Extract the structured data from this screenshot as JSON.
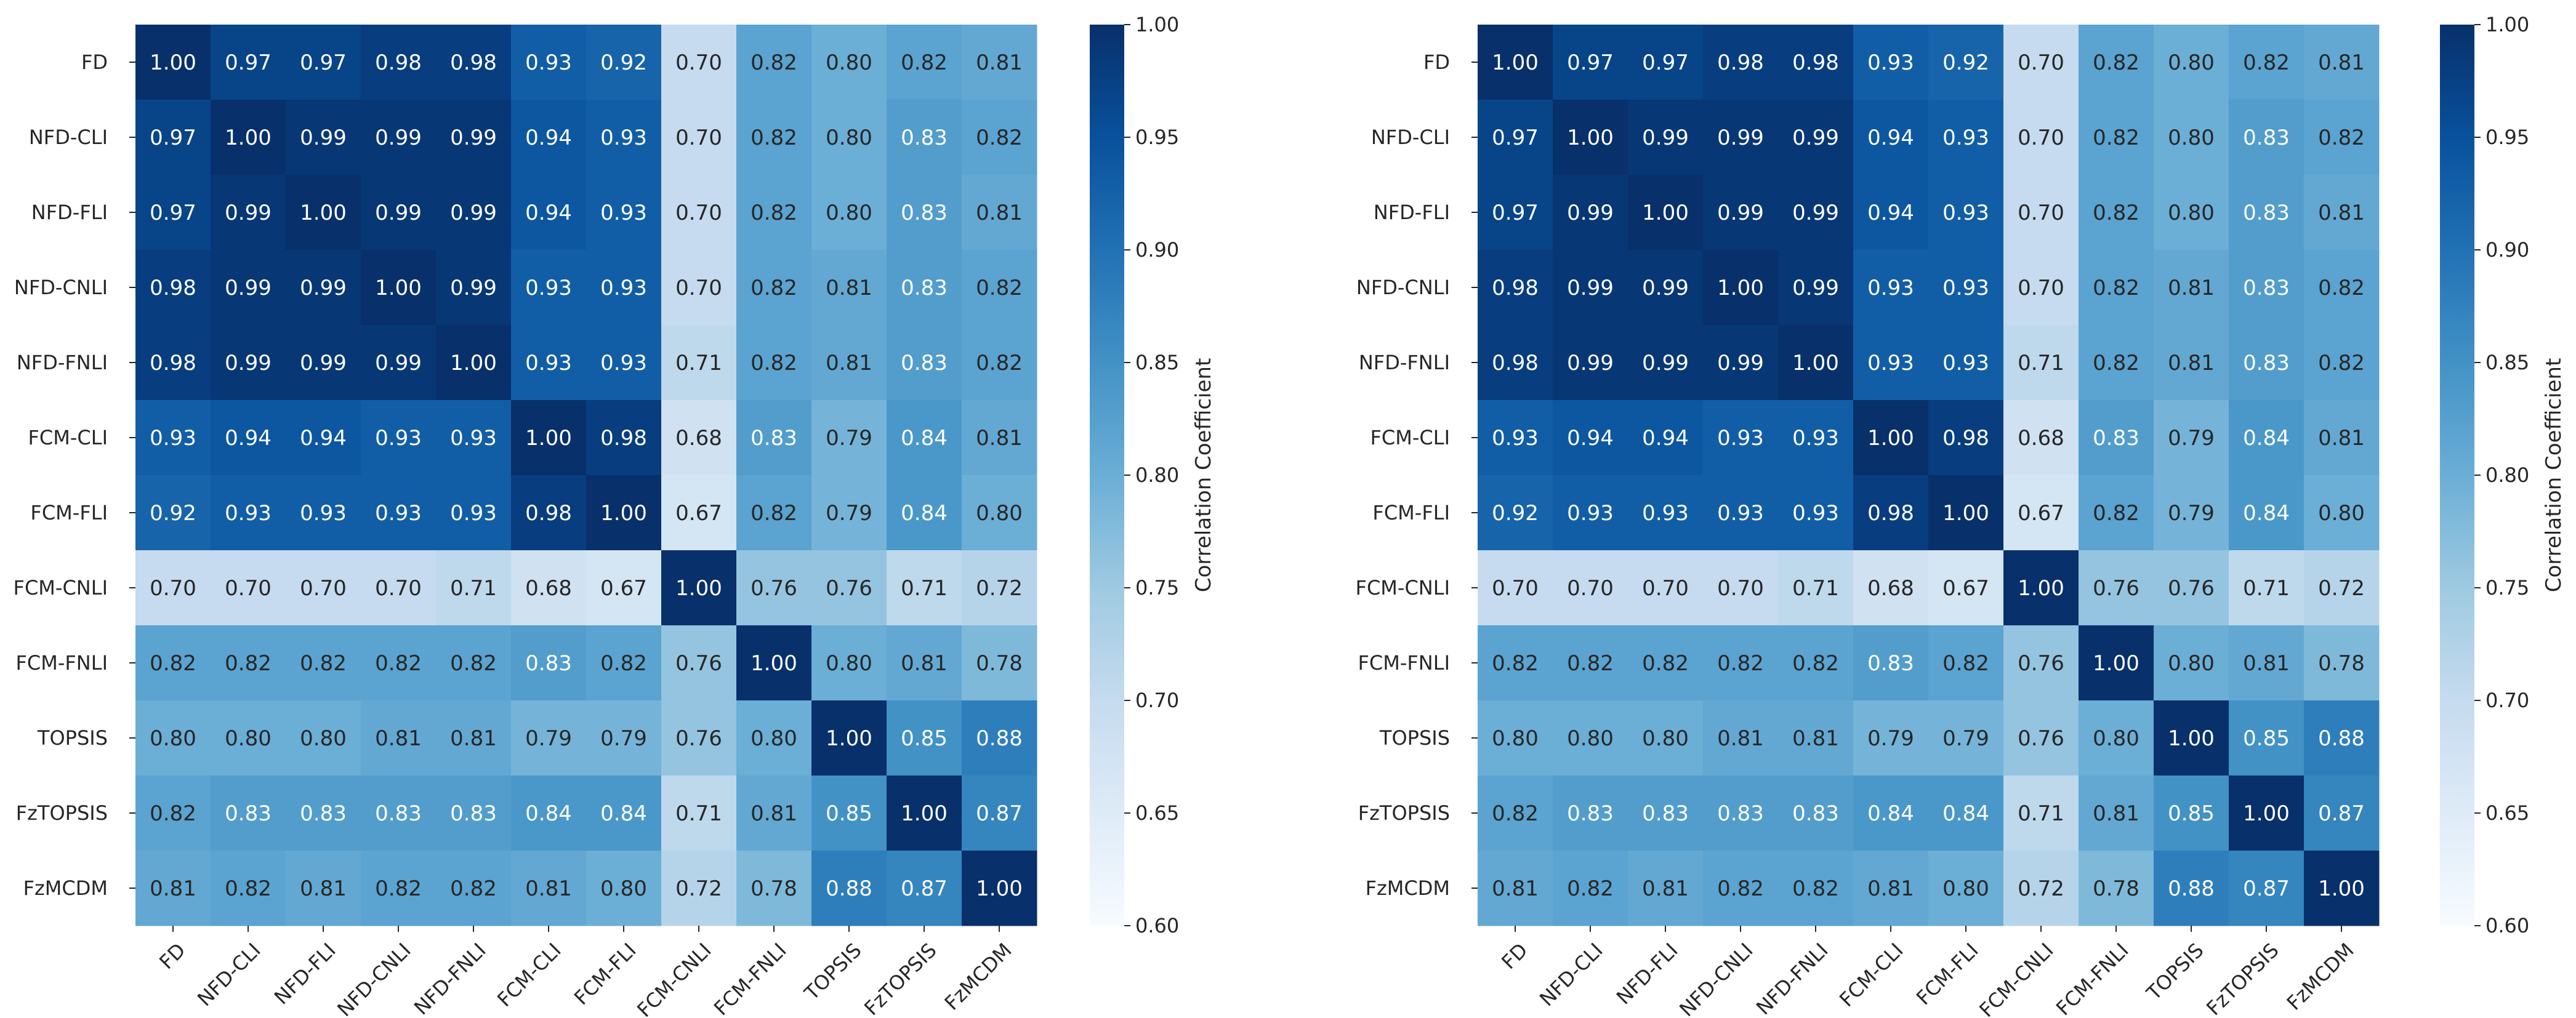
{
  "chart_data": [
    {
      "type": "heatmap",
      "title": "",
      "xlabel": "",
      "ylabel": "",
      "categories": [
        "FD",
        "NFD-CLI",
        "NFD-FLI",
        "NFD-CNLI",
        "NFD-FNLI",
        "FCM-CLI",
        "FCM-FLI",
        "FCM-CNLI",
        "FCM-FNLI",
        "TOPSIS",
        "FzTOPSIS",
        "FzMCDM"
      ],
      "values": [
        [
          1.0,
          0.97,
          0.97,
          0.98,
          0.98,
          0.93,
          0.92,
          0.7,
          0.82,
          0.8,
          0.82,
          0.81
        ],
        [
          0.97,
          1.0,
          0.99,
          0.99,
          0.99,
          0.94,
          0.93,
          0.7,
          0.82,
          0.8,
          0.83,
          0.82
        ],
        [
          0.97,
          0.99,
          1.0,
          0.99,
          0.99,
          0.94,
          0.93,
          0.7,
          0.82,
          0.8,
          0.83,
          0.81
        ],
        [
          0.98,
          0.99,
          0.99,
          1.0,
          0.99,
          0.93,
          0.93,
          0.7,
          0.82,
          0.81,
          0.83,
          0.82
        ],
        [
          0.98,
          0.99,
          0.99,
          0.99,
          1.0,
          0.93,
          0.93,
          0.71,
          0.82,
          0.81,
          0.83,
          0.82
        ],
        [
          0.93,
          0.94,
          0.94,
          0.93,
          0.93,
          1.0,
          0.98,
          0.68,
          0.83,
          0.79,
          0.84,
          0.81
        ],
        [
          0.92,
          0.93,
          0.93,
          0.93,
          0.93,
          0.98,
          1.0,
          0.67,
          0.82,
          0.79,
          0.84,
          0.8
        ],
        [
          0.7,
          0.7,
          0.7,
          0.7,
          0.71,
          0.68,
          0.67,
          1.0,
          0.76,
          0.76,
          0.71,
          0.72
        ],
        [
          0.82,
          0.82,
          0.82,
          0.82,
          0.82,
          0.83,
          0.82,
          0.76,
          1.0,
          0.8,
          0.81,
          0.78
        ],
        [
          0.8,
          0.8,
          0.8,
          0.81,
          0.81,
          0.79,
          0.79,
          0.76,
          0.8,
          1.0,
          0.85,
          0.88
        ],
        [
          0.82,
          0.83,
          0.83,
          0.83,
          0.83,
          0.84,
          0.84,
          0.71,
          0.81,
          0.85,
          1.0,
          0.87
        ],
        [
          0.81,
          0.82,
          0.81,
          0.82,
          0.82,
          0.81,
          0.8,
          0.72,
          0.78,
          0.88,
          0.87,
          1.0
        ]
      ],
      "colorbar": {
        "label": "Correlation Coefficient",
        "range": [
          0.6,
          1.0
        ],
        "ticks": [
          0.6,
          0.65,
          0.7,
          0.75,
          0.8,
          0.85,
          0.9,
          0.95,
          1.0
        ],
        "colormap": "Blues"
      },
      "annotation_format": "2 decimals"
    },
    {
      "type": "heatmap",
      "title": "",
      "xlabel": "",
      "ylabel": "",
      "categories": [
        "FD",
        "NFD-CLI",
        "NFD-FLI",
        "NFD-CNLI",
        "NFD-FNLI",
        "FCM-CLI",
        "FCM-FLI",
        "FCM-CNLI",
        "FCM-FNLI",
        "TOPSIS",
        "FzTOPSIS",
        "FzMCDM"
      ],
      "values": [
        [
          1.0,
          0.97,
          0.97,
          0.98,
          0.98,
          0.93,
          0.92,
          0.7,
          0.82,
          0.8,
          0.82,
          0.81
        ],
        [
          0.97,
          1.0,
          0.99,
          0.99,
          0.99,
          0.94,
          0.93,
          0.7,
          0.82,
          0.8,
          0.83,
          0.82
        ],
        [
          0.97,
          0.99,
          1.0,
          0.99,
          0.99,
          0.94,
          0.93,
          0.7,
          0.82,
          0.8,
          0.83,
          0.81
        ],
        [
          0.98,
          0.99,
          0.99,
          1.0,
          0.99,
          0.93,
          0.93,
          0.7,
          0.82,
          0.81,
          0.83,
          0.82
        ],
        [
          0.98,
          0.99,
          0.99,
          0.99,
          1.0,
          0.93,
          0.93,
          0.71,
          0.82,
          0.81,
          0.83,
          0.82
        ],
        [
          0.93,
          0.94,
          0.94,
          0.93,
          0.93,
          1.0,
          0.98,
          0.68,
          0.83,
          0.79,
          0.84,
          0.81
        ],
        [
          0.92,
          0.93,
          0.93,
          0.93,
          0.93,
          0.98,
          1.0,
          0.67,
          0.82,
          0.79,
          0.84,
          0.8
        ],
        [
          0.7,
          0.7,
          0.7,
          0.7,
          0.71,
          0.68,
          0.67,
          1.0,
          0.76,
          0.76,
          0.71,
          0.72
        ],
        [
          0.82,
          0.82,
          0.82,
          0.82,
          0.82,
          0.83,
          0.82,
          0.76,
          1.0,
          0.8,
          0.81,
          0.78
        ],
        [
          0.8,
          0.8,
          0.8,
          0.81,
          0.81,
          0.79,
          0.79,
          0.76,
          0.8,
          1.0,
          0.85,
          0.88
        ],
        [
          0.82,
          0.83,
          0.83,
          0.83,
          0.83,
          0.84,
          0.84,
          0.71,
          0.81,
          0.85,
          1.0,
          0.87
        ],
        [
          0.81,
          0.82,
          0.81,
          0.82,
          0.82,
          0.81,
          0.8,
          0.72,
          0.78,
          0.88,
          0.87,
          1.0
        ]
      ],
      "colorbar": {
        "label": "Correlation Coefficient",
        "range": [
          0.6,
          1.0
        ],
        "ticks": [
          0.6,
          0.65,
          0.7,
          0.75,
          0.8,
          0.85,
          0.9,
          0.95,
          1.0
        ],
        "colormap": "Blues"
      },
      "annotation_format": "2 decimals"
    }
  ]
}
